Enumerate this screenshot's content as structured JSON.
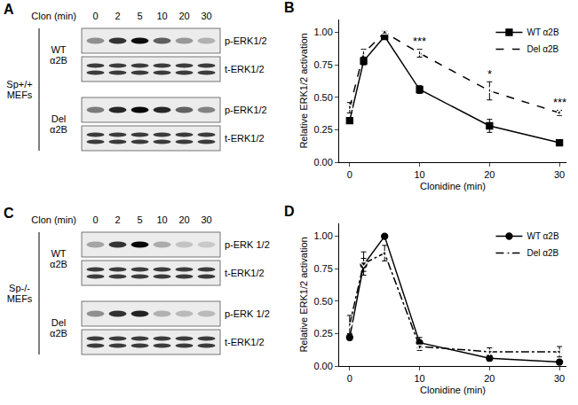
{
  "chart_data": [
    {
      "type": "line",
      "panel": "B",
      "x": [
        0,
        2,
        5,
        10,
        20,
        30
      ],
      "x_label": "Clonidine (min)",
      "y_label": "Relative ERK1/2 activation",
      "xlim": [
        -1.5,
        31
      ],
      "xticks": [
        0,
        10,
        20,
        30
      ],
      "ylim": [
        0,
        1.1
      ],
      "yticks": [
        {
          "value": 0,
          "label": "0.00"
        },
        {
          "value": 0.25,
          "label": "0.25"
        },
        {
          "value": 0.5,
          "label": "0.50"
        },
        {
          "value": 0.75,
          "label": "0.75"
        },
        {
          "value": 1,
          "label": "1.00"
        }
      ],
      "grid": false,
      "legend": "upper right",
      "series": [
        {
          "name": "WT α2B",
          "color": "#000000",
          "marker": "square",
          "line_style": "solid",
          "values": [
            0.32,
            0.78,
            0.97,
            0.56,
            0.28,
            0.15
          ],
          "error": [
            0.02,
            0.03,
            0.01,
            0.03,
            0.05,
            0.01
          ]
        },
        {
          "name": "Del α2B",
          "color": "#000000",
          "marker": "triangle-up-open",
          "line_style": "dash",
          "values": [
            0.42,
            0.84,
            1.0,
            0.84,
            0.55,
            0.38
          ],
          "error": [
            0.04,
            0.03,
            0.01,
            0.03,
            0.07,
            0.02
          ]
        }
      ],
      "annotations": [
        {
          "text": "***",
          "x": 10,
          "y": 0.93
        },
        {
          "text": "*",
          "x": 20,
          "y": 0.68
        },
        {
          "text": "***",
          "x": 30,
          "y": 0.46
        }
      ]
    },
    {
      "type": "line",
      "panel": "D",
      "x": [
        0,
        2,
        5,
        10,
        20,
        30
      ],
      "x_label": "Clonidine (min)",
      "y_label": "Relative ERK1/2 activation",
      "xlim": [
        -1.5,
        31
      ],
      "xticks": [
        0,
        10,
        20,
        30
      ],
      "ylim": [
        0,
        1.1
      ],
      "yticks": [
        {
          "value": 0,
          "label": "0.00"
        },
        {
          "value": 0.25,
          "label": "0.25"
        },
        {
          "value": 0.5,
          "label": "0.50"
        },
        {
          "value": 0.75,
          "label": "0.75"
        },
        {
          "value": 1,
          "label": "1.00"
        }
      ],
      "grid": false,
      "legend": "upper right",
      "series": [
        {
          "name": "WT α2B",
          "color": "#000000",
          "marker": "circle",
          "line_style": "solid",
          "values": [
            0.22,
            0.78,
            1.0,
            0.18,
            0.06,
            0.03
          ],
          "error": [
            0.02,
            0.05,
            0.01,
            0.04,
            0.02,
            0.01
          ]
        },
        {
          "name": "Del α2B",
          "color": "#000000",
          "marker": "triangle-down-open",
          "line_style": "dashdot",
          "values": [
            0.32,
            0.79,
            0.87,
            0.15,
            0.11,
            0.11
          ],
          "error": [
            0.07,
            0.09,
            0.06,
            0.03,
            0.03,
            0.04
          ]
        }
      ],
      "annotations": []
    }
  ],
  "blots": [
    {
      "panel": "A",
      "treatment_label": "Clon (min)",
      "lanes": [
        0,
        2,
        5,
        10,
        20,
        30
      ],
      "group": "Sp+/+ MEFs",
      "rows": [
        {
          "subgroup": "WT α2B",
          "bands": [
            "p-ERK1/2",
            "t-ERK1/2"
          ]
        },
        {
          "subgroup": "Del α2B",
          "bands": [
            "p-ERK1/2",
            "t-ERK1/2"
          ]
        }
      ]
    },
    {
      "panel": "C",
      "treatment_label": "Clon (min)",
      "lanes": [
        0,
        2,
        5,
        10,
        20,
        30
      ],
      "group": "Sp-/- MEFs",
      "rows": [
        {
          "subgroup": "WT α2B",
          "bands": [
            "p-ERK 1/2",
            "t-ERK1/2"
          ]
        },
        {
          "subgroup": "Del α2B",
          "bands": [
            "p-ERK 1/2",
            "t-ERK1/2"
          ]
        }
      ]
    }
  ]
}
